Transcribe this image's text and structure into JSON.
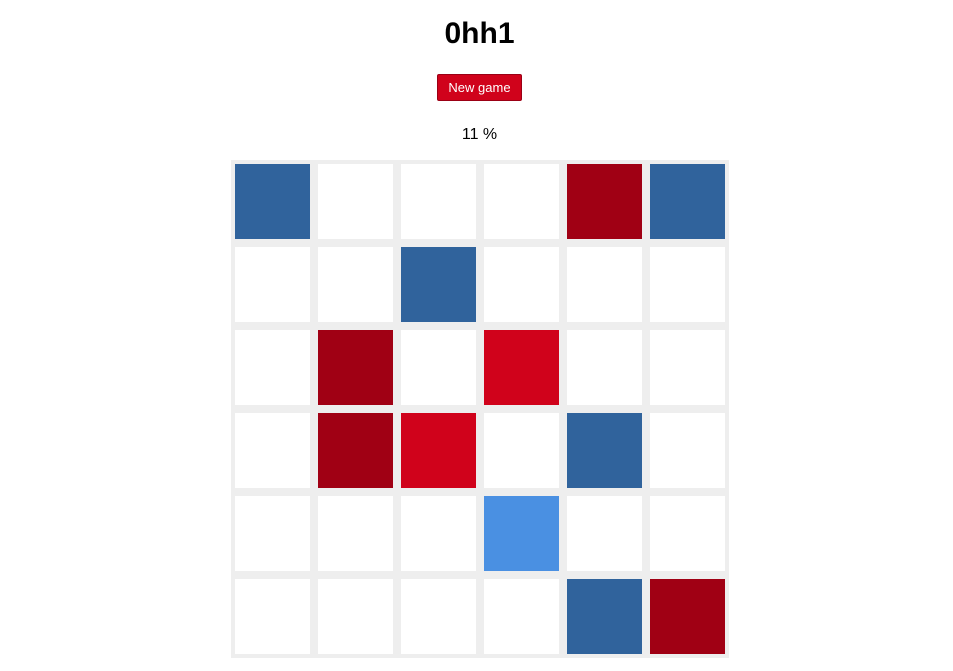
{
  "game": {
    "title": "0hh1",
    "new_game_label": "New game",
    "progress_text": "11 %",
    "progress_percent": 11
  },
  "colors": {
    "empty": "#ffffff",
    "blue": "#30639c",
    "darkred": "#a00014",
    "red": "#d0021b",
    "lightblue": "#4a90e2",
    "grid_background": "#eeeeee",
    "button": "#d0021b"
  },
  "board": {
    "size": 6,
    "rows": [
      [
        "blue",
        "empty",
        "empty",
        "empty",
        "darkred",
        "blue"
      ],
      [
        "empty",
        "empty",
        "blue",
        "empty",
        "empty",
        "empty"
      ],
      [
        "empty",
        "darkred",
        "empty",
        "red",
        "empty",
        "empty"
      ],
      [
        "empty",
        "darkred",
        "red",
        "empty",
        "blue",
        "empty"
      ],
      [
        "empty",
        "empty",
        "empty",
        "lightblue",
        "empty",
        "empty"
      ],
      [
        "empty",
        "empty",
        "empty",
        "empty",
        "blue",
        "darkred"
      ]
    ]
  }
}
